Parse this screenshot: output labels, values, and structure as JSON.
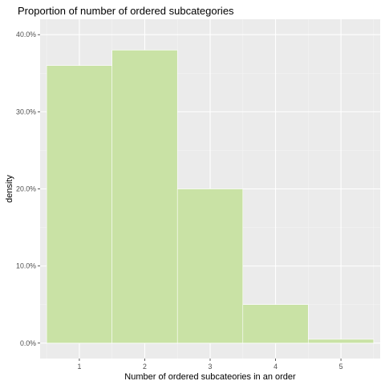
{
  "chart_data": {
    "type": "bar",
    "title": "Proportion of number of ordered subcategories",
    "xlabel": "Number of ordered subcateories in an order",
    "ylabel": "density",
    "categories": [
      "1",
      "2",
      "3",
      "4",
      "5"
    ],
    "values": [
      36.0,
      38.0,
      20.0,
      5.0,
      0.5
    ],
    "value_unit": "percent",
    "ylim": [
      0,
      40
    ],
    "yticks": [
      0,
      10,
      20,
      30,
      40
    ],
    "ytick_labels": [
      "0.0%",
      "10.0%",
      "20.0%",
      "30.0%",
      "40.0%"
    ],
    "xticks": [
      1,
      2,
      3,
      4,
      5
    ],
    "xtick_labels": [
      "1",
      "2",
      "3",
      "4",
      "5"
    ],
    "grid": true,
    "legend": "none",
    "colors": {
      "bar_fill": "#C9E2A5",
      "bar_stroke": "#FFFFFF",
      "panel_background": "#EBEBEB",
      "grid_major": "#FFFFFF",
      "grid_minor": "#F4F4F4",
      "tick_text": "#4D4D4D",
      "title_text": "#000000"
    }
  }
}
